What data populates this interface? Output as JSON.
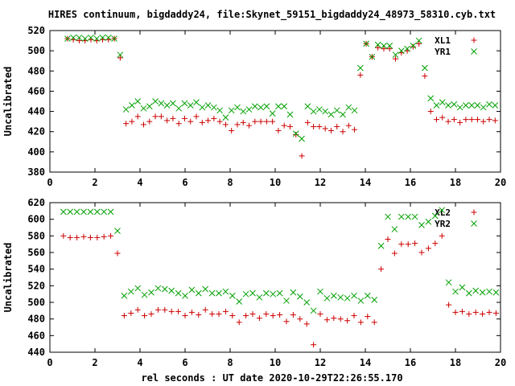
{
  "title": "HIRES continuum, bigdaddy24, file:Skynet_59151_bigdaddy24_48973_58310.cyb.txt",
  "xlabel": "rel seconds : UT date 2020-10-29T22:26:55.170",
  "colors": {
    "red": "#cc0000",
    "green": "#00a000"
  },
  "chart_data": [
    {
      "type": "scatter",
      "ylabel": "Uncalibrated",
      "xlim": [
        0,
        20
      ],
      "ylim": [
        380,
        520
      ],
      "xticks": [
        "0",
        "2",
        "4",
        "6",
        "8",
        "10",
        "12",
        "14",
        "16",
        "18",
        "20"
      ],
      "yticks": [
        "380",
        "400",
        "420",
        "440",
        "460",
        "480",
        "500",
        "520"
      ],
      "legend_position": "top-right",
      "series": [
        {
          "name": "XL1",
          "marker": "plus",
          "color": "#cc0000",
          "x": [
            0.78,
            1.04,
            1.3,
            1.56,
            1.82,
            2.08,
            2.34,
            2.6,
            2.86,
            3.12,
            3.38,
            3.64,
            3.9,
            4.16,
            4.42,
            4.68,
            4.94,
            5.2,
            5.46,
            5.72,
            5.98,
            6.24,
            6.5,
            6.76,
            7.02,
            7.28,
            7.54,
            7.8,
            8.06,
            8.32,
            8.58,
            8.84,
            9.1,
            9.36,
            9.62,
            9.88,
            10.14,
            10.4,
            10.66,
            10.92,
            11.18,
            11.44,
            11.7,
            11.96,
            12.22,
            12.48,
            12.74,
            13.0,
            13.26,
            13.52,
            13.78,
            14.04,
            14.3,
            14.56,
            14.82,
            15.08,
            15.34,
            15.6,
            15.86,
            16.12,
            16.38,
            16.64,
            16.9,
            17.16,
            17.42,
            17.68,
            17.94,
            18.2,
            18.46,
            18.72,
            18.98,
            19.24,
            19.5,
            19.76
          ],
          "y": [
            512,
            511,
            510,
            510,
            511,
            510,
            511,
            511,
            512,
            493,
            428,
            430,
            435,
            427,
            430,
            435,
            435,
            431,
            433,
            428,
            433,
            430,
            435,
            429,
            431,
            433,
            430,
            427,
            421,
            427,
            429,
            426,
            430,
            430,
            430,
            430,
            421,
            426,
            425,
            417,
            396,
            429,
            425,
            425,
            423,
            421,
            425,
            420,
            426,
            422,
            476,
            507,
            494,
            503,
            502,
            502,
            492,
            498,
            500,
            504,
            507,
            475,
            440,
            432,
            434,
            430,
            432,
            429,
            432,
            432,
            432,
            430,
            432,
            431
          ],
          "legend_marker_x": 18.95,
          "legend_marker_y": 512
        },
        {
          "name": "YR1",
          "marker": "cross",
          "color": "#00a000",
          "x": [
            0.78,
            1.04,
            1.3,
            1.56,
            1.82,
            2.08,
            2.34,
            2.6,
            2.86,
            3.12,
            3.38,
            3.64,
            3.9,
            4.16,
            4.42,
            4.68,
            4.94,
            5.2,
            5.46,
            5.72,
            5.98,
            6.24,
            6.5,
            6.76,
            7.02,
            7.28,
            7.54,
            7.8,
            8.06,
            8.32,
            8.58,
            8.84,
            9.1,
            9.36,
            9.62,
            9.88,
            10.14,
            10.4,
            10.66,
            10.92,
            11.18,
            11.44,
            11.7,
            11.96,
            12.22,
            12.48,
            12.74,
            13.0,
            13.26,
            13.52,
            13.78,
            14.04,
            14.3,
            14.56,
            14.82,
            15.08,
            15.34,
            15.6,
            15.86,
            16.12,
            16.38,
            16.64,
            16.9,
            17.16,
            17.42,
            17.68,
            17.94,
            18.2,
            18.46,
            18.72,
            18.98,
            19.24,
            19.5,
            19.76
          ],
          "y": [
            512,
            513,
            513,
            512,
            513,
            512,
            513,
            513,
            512,
            496,
            442,
            446,
            450,
            443,
            445,
            450,
            448,
            446,
            448,
            443,
            448,
            446,
            449,
            444,
            446,
            444,
            441,
            434,
            441,
            444,
            440,
            442,
            445,
            444,
            445,
            438,
            445,
            445,
            437,
            418,
            413,
            445,
            440,
            442,
            440,
            437,
            441,
            437,
            444,
            441,
            483,
            507,
            494,
            506,
            505,
            505,
            496,
            500,
            502,
            505,
            510,
            483,
            453,
            446,
            449,
            446,
            447,
            444,
            446,
            446,
            446,
            444,
            447,
            446
          ],
          "legend_marker_x": 18.95,
          "legend_marker_y": 502
        }
      ],
      "legend": [
        "XL1",
        "YR1"
      ]
    },
    {
      "type": "scatter",
      "ylabel": "Uncalibrated",
      "xlim": [
        0,
        20
      ],
      "ylim": [
        440,
        620
      ],
      "xticks": [
        "0",
        "2",
        "4",
        "6",
        "8",
        "10",
        "12",
        "14",
        "16",
        "18",
        "20"
      ],
      "yticks": [
        "440",
        "460",
        "480",
        "500",
        "520",
        "540",
        "560",
        "580",
        "600",
        "620"
      ],
      "legend_position": "top-right",
      "series": [
        {
          "name": "XL2",
          "marker": "plus",
          "color": "#cc0000",
          "x": [
            0.6,
            0.9,
            1.2,
            1.5,
            1.8,
            2.1,
            2.4,
            2.7,
            3.0,
            3.3,
            3.6,
            3.9,
            4.2,
            4.5,
            4.8,
            5.1,
            5.4,
            5.7,
            6.0,
            6.3,
            6.6,
            6.9,
            7.2,
            7.5,
            7.8,
            8.1,
            8.4,
            8.7,
            9.0,
            9.3,
            9.6,
            9.9,
            10.2,
            10.5,
            10.8,
            11.1,
            11.4,
            11.7,
            12.0,
            12.3,
            12.6,
            12.9,
            13.2,
            13.5,
            13.8,
            14.1,
            14.4,
            14.7,
            15.0,
            15.3,
            15.6,
            15.9,
            16.2,
            16.5,
            16.8,
            17.1,
            17.4,
            17.7,
            18.0,
            18.3,
            18.6,
            18.9,
            19.2,
            19.5,
            19.8
          ],
          "y": [
            580,
            578,
            578,
            579,
            578,
            578,
            579,
            580,
            559,
            484,
            487,
            491,
            484,
            486,
            491,
            491,
            489,
            489,
            484,
            488,
            485,
            491,
            486,
            486,
            489,
            484,
            476,
            484,
            486,
            481,
            486,
            484,
            485,
            477,
            485,
            480,
            474,
            449,
            486,
            479,
            481,
            480,
            478,
            484,
            476,
            483,
            476,
            540,
            576,
            559,
            570,
            570,
            571,
            560,
            565,
            571,
            580,
            497,
            488,
            489,
            486,
            488,
            486,
            488,
            487
          ],
          "legend_marker_x": 18.95,
          "legend_marker_y": 610
        },
        {
          "name": "YR2",
          "marker": "cross",
          "color": "#00a000",
          "x": [
            0.6,
            0.9,
            1.2,
            1.5,
            1.8,
            2.1,
            2.4,
            2.7,
            3.0,
            3.3,
            3.6,
            3.9,
            4.2,
            4.5,
            4.8,
            5.1,
            5.4,
            5.7,
            6.0,
            6.3,
            6.6,
            6.9,
            7.2,
            7.5,
            7.8,
            8.1,
            8.4,
            8.7,
            9.0,
            9.3,
            9.6,
            9.9,
            10.2,
            10.5,
            10.8,
            11.1,
            11.4,
            11.7,
            12.0,
            12.3,
            12.6,
            12.9,
            13.2,
            13.5,
            13.8,
            14.1,
            14.4,
            14.7,
            15.0,
            15.3,
            15.6,
            15.9,
            16.2,
            16.5,
            16.8,
            17.1,
            17.4,
            17.7,
            18.0,
            18.3,
            18.6,
            18.9,
            19.2,
            19.5,
            19.8
          ],
          "y": [
            609,
            609,
            609,
            609,
            609,
            609,
            609,
            609,
            586,
            508,
            513,
            517,
            509,
            512,
            517,
            516,
            514,
            511,
            508,
            515,
            511,
            516,
            511,
            511,
            513,
            508,
            501,
            510,
            511,
            506,
            511,
            510,
            511,
            502,
            512,
            507,
            500,
            490,
            513,
            505,
            508,
            506,
            505,
            508,
            502,
            508,
            503,
            568,
            603,
            588,
            603,
            603,
            603,
            593,
            597,
            604,
            611,
            524,
            513,
            518,
            511,
            514,
            512,
            513,
            512
          ],
          "legend_marker_x": 18.95,
          "legend_marker_y": 597
        }
      ],
      "legend": [
        "XL2",
        "YR2"
      ]
    }
  ]
}
